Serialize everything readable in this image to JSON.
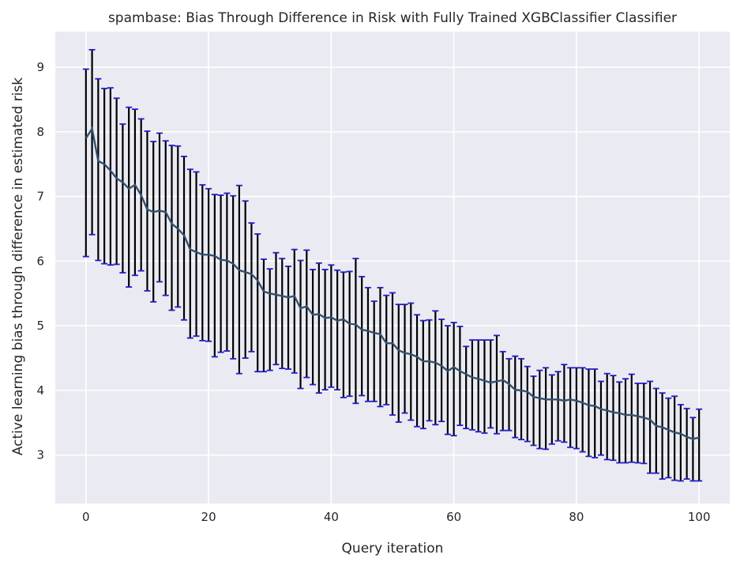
{
  "colors": {
    "plot_background": "#eaeaf2",
    "grid": "#ffffff",
    "mean_line": "#34516e",
    "error_bar": "#000000",
    "cap": "#1f1fc8"
  },
  "chart_data": {
    "type": "line",
    "title": "spambase: Bias Through Difference in Risk with Fully Trained XGBClassifier Classifier",
    "xlabel": "Query iteration",
    "ylabel": "Active learning bias through difference in estimated risk",
    "xlim": [
      -5,
      105
    ],
    "ylim": [
      2.25,
      9.55
    ],
    "xticks": [
      0,
      20,
      40,
      60,
      80,
      100
    ],
    "yticks": [
      3,
      4,
      5,
      6,
      7,
      8,
      9
    ],
    "grid": true,
    "legend": "none",
    "mean": [
      7.9,
      8.05,
      7.55,
      7.5,
      7.4,
      7.28,
      7.22,
      7.12,
      7.18,
      7.02,
      6.8,
      6.76,
      6.78,
      6.76,
      6.58,
      6.5,
      6.4,
      6.18,
      6.14,
      6.1,
      6.1,
      6.08,
      6.02,
      6.01,
      5.96,
      5.86,
      5.83,
      5.8,
      5.7,
      5.53,
      5.5,
      5.48,
      5.46,
      5.44,
      5.46,
      5.27,
      5.3,
      5.17,
      5.18,
      5.12,
      5.13,
      5.08,
      5.1,
      5.03,
      5.02,
      4.94,
      4.92,
      4.89,
      4.87,
      4.73,
      4.73,
      4.62,
      4.58,
      4.56,
      4.52,
      4.45,
      4.45,
      4.43,
      4.38,
      4.3,
      4.36,
      4.3,
      4.25,
      4.2,
      4.18,
      4.15,
      4.12,
      4.14,
      4.16,
      4.1,
      4.01,
      4.0,
      3.98,
      3.9,
      3.88,
      3.86,
      3.86,
      3.86,
      3.84,
      3.86,
      3.84,
      3.81,
      3.77,
      3.76,
      3.71,
      3.69,
      3.66,
      3.65,
      3.62,
      3.62,
      3.6,
      3.58,
      3.55,
      3.45,
      3.43,
      3.39,
      3.35,
      3.33,
      3.28,
      3.25,
      3.27
    ],
    "upper": [
      8.97,
      9.27,
      8.82,
      8.67,
      8.68,
      8.52,
      8.12,
      8.38,
      8.35,
      8.2,
      8.01,
      7.85,
      7.98,
      7.86,
      7.79,
      7.78,
      7.62,
      7.42,
      7.38,
      7.18,
      7.12,
      7.03,
      7.02,
      7.05,
      7.01,
      7.17,
      6.93,
      6.59,
      6.42,
      6.03,
      5.88,
      6.13,
      6.04,
      5.92,
      6.18,
      6.01,
      6.17,
      5.87,
      5.97,
      5.87,
      5.94,
      5.86,
      5.83,
      5.84,
      6.04,
      5.76,
      5.59,
      5.38,
      5.59,
      5.47,
      5.51,
      5.33,
      5.33,
      5.35,
      5.17,
      5.08,
      5.09,
      5.23,
      5.1,
      5.0,
      5.05,
      4.99,
      4.68,
      4.78,
      4.78,
      4.78,
      4.78,
      4.85,
      4.6,
      4.49,
      4.53,
      4.49,
      4.37,
      4.22,
      4.31,
      4.35,
      4.24,
      4.29,
      4.4,
      4.35,
      4.35,
      4.35,
      4.33,
      4.33,
      4.14,
      4.26,
      4.23,
      4.13,
      4.18,
      4.25,
      4.11,
      4.11,
      4.14,
      4.03,
      3.96,
      3.88,
      3.91,
      3.78,
      3.72,
      3.58,
      3.71
    ],
    "lower": [
      6.07,
      6.41,
      6.01,
      5.96,
      5.94,
      5.95,
      5.82,
      5.6,
      5.78,
      5.85,
      5.54,
      5.37,
      5.68,
      5.47,
      5.24,
      5.29,
      5.09,
      4.81,
      4.84,
      4.77,
      4.76,
      4.52,
      4.59,
      4.61,
      4.49,
      4.26,
      4.5,
      4.6,
      4.29,
      4.29,
      4.31,
      4.4,
      4.34,
      4.33,
      4.27,
      4.03,
      4.2,
      4.09,
      3.96,
      4.01,
      4.05,
      4.01,
      3.89,
      3.91,
      3.8,
      3.92,
      3.83,
      3.83,
      3.75,
      3.78,
      3.62,
      3.51,
      3.65,
      3.54,
      3.44,
      3.41,
      3.53,
      3.47,
      3.52,
      3.32,
      3.3,
      3.46,
      3.41,
      3.39,
      3.36,
      3.34,
      3.42,
      3.33,
      3.38,
      3.38,
      3.27,
      3.24,
      3.21,
      3.15,
      3.1,
      3.09,
      3.17,
      3.22,
      3.2,
      3.12,
      3.1,
      3.05,
      2.98,
      2.96,
      3.0,
      2.93,
      2.92,
      2.88,
      2.88,
      2.89,
      2.88,
      2.87,
      2.72,
      2.72,
      2.63,
      2.65,
      2.61,
      2.6,
      2.63,
      2.6,
      2.6
    ]
  }
}
